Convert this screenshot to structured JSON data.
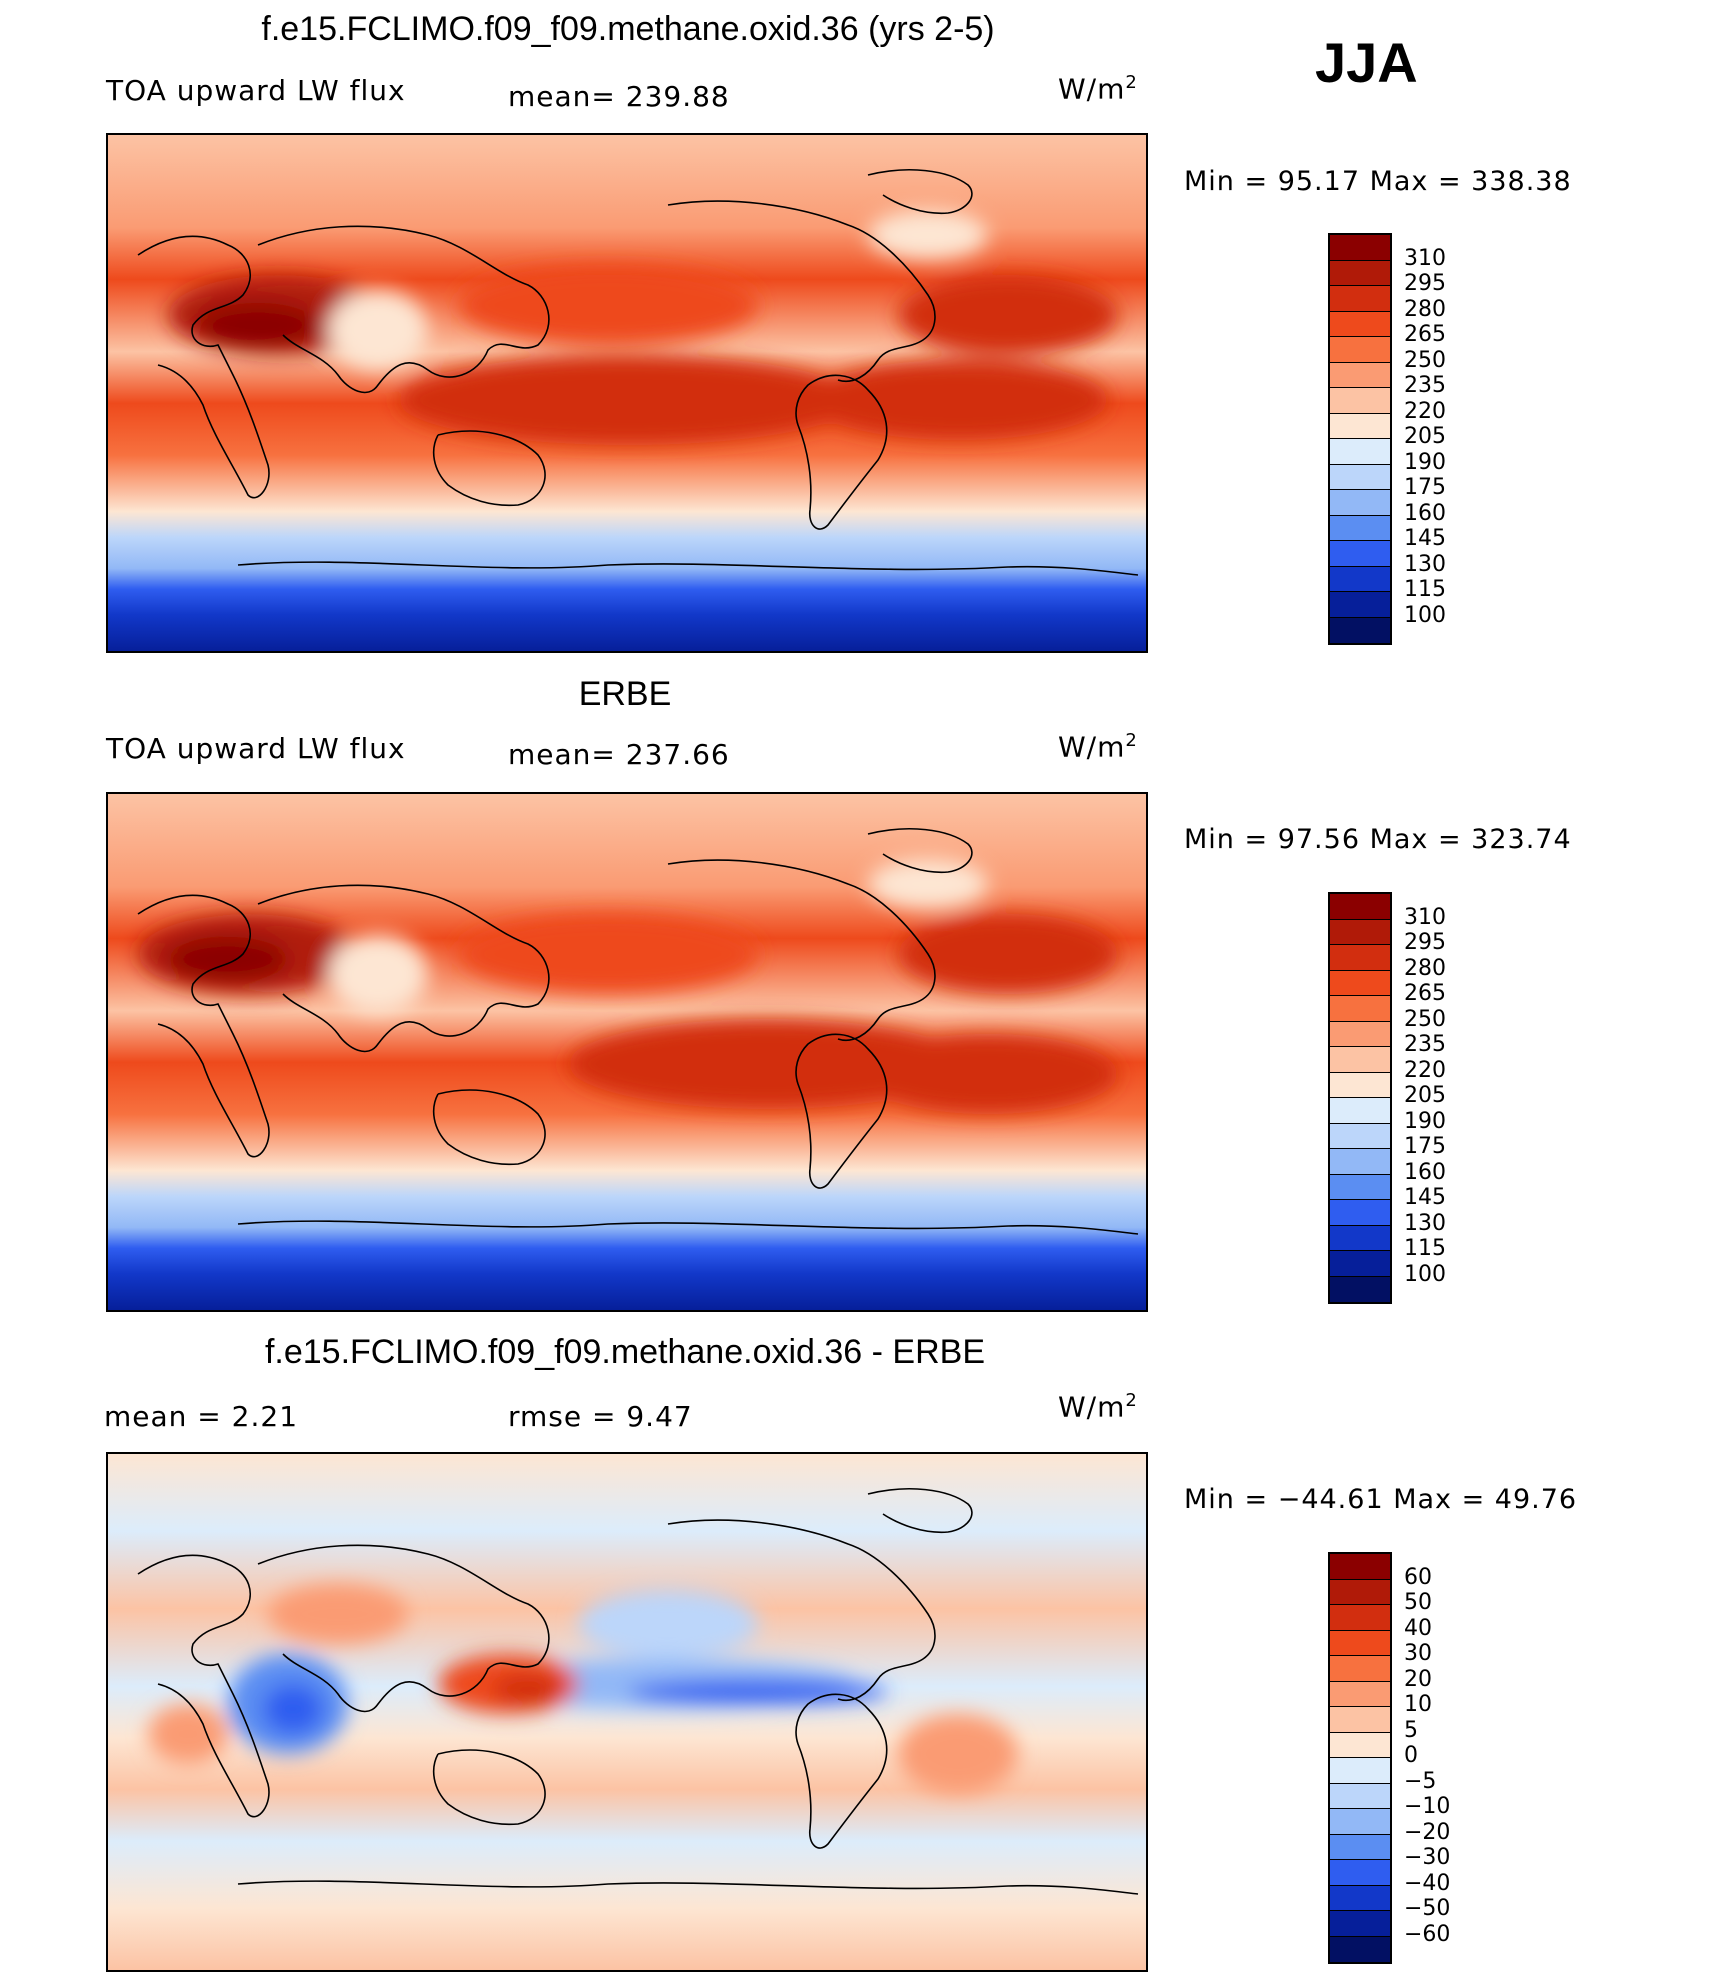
{
  "season": "JJA",
  "units": "W/m2",
  "panels": [
    {
      "title": "f.e15.FCLIMO.f09_f09.methane.oxid.36 (yrs 2-5)",
      "left_label": "TOA upward LW flux",
      "mid_label": "mean= 239.88",
      "units": "W/m",
      "units_sup": "2",
      "minmax": "Min = 95.17 Max = 338.38",
      "levels": [
        "310",
        "295",
        "280",
        "265",
        "250",
        "235",
        "220",
        "205",
        "190",
        "175",
        "160",
        "145",
        "130",
        "115",
        "100"
      ],
      "colors": [
        "#8b0000",
        "#b01a08",
        "#d22e0f",
        "#ee4a1c",
        "#f7713f",
        "#fa9b73",
        "#fcc3a4",
        "#fde6d3",
        "#dcecfb",
        "#bcd6fa",
        "#92b8f6",
        "#5b8ef2",
        "#2f5df0",
        "#1238c9",
        "#061f9a",
        "#021063"
      ]
    },
    {
      "title": "ERBE",
      "left_label": "TOA upward LW flux",
      "mid_label": "mean= 237.66",
      "units": "W/m",
      "units_sup": "2",
      "minmax": "Min = 97.56 Max = 323.74",
      "levels": [
        "310",
        "295",
        "280",
        "265",
        "250",
        "235",
        "220",
        "205",
        "190",
        "175",
        "160",
        "145",
        "130",
        "115",
        "100"
      ],
      "colors": [
        "#8b0000",
        "#b01a08",
        "#d22e0f",
        "#ee4a1c",
        "#f7713f",
        "#fa9b73",
        "#fcc3a4",
        "#fde6d3",
        "#dcecfb",
        "#bcd6fa",
        "#92b8f6",
        "#5b8ef2",
        "#2f5df0",
        "#1238c9",
        "#061f9a",
        "#021063"
      ]
    },
    {
      "title": "f.e15.FCLIMO.f09_f09.methane.oxid.36 - ERBE",
      "left_label": "mean = 2.21",
      "mid_label": "rmse = 9.47",
      "units": "W/m",
      "units_sup": "2",
      "minmax": "Min = −44.61 Max = 49.76",
      "levels": [
        "60",
        "50",
        "40",
        "30",
        "20",
        "10",
        "5",
        "0",
        "−5",
        "−10",
        "−20",
        "−30",
        "−40",
        "−50",
        "−60"
      ],
      "colors": [
        "#8b0000",
        "#b01a08",
        "#d22e0f",
        "#ee4a1c",
        "#f7713f",
        "#fa9b73",
        "#fcc3a4",
        "#fde6d3",
        "#dcecfb",
        "#bcd6fa",
        "#92b8f6",
        "#5b8ef2",
        "#2f5df0",
        "#1238c9",
        "#061f9a",
        "#021063"
      ]
    }
  ]
}
